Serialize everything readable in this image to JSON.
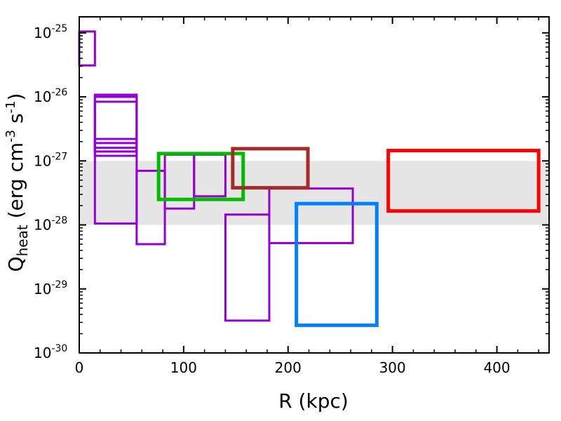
{
  "chart_data": {
    "type": "rectangles",
    "title": "",
    "xlabel": "R (kpc)",
    "ylabel": {
      "base": "Q",
      "subscript": "heat",
      "units_open": " (erg cm",
      "units_exp1": "-3",
      "units_mid": " s",
      "units_exp2": "-1",
      "units_close": ")"
    },
    "xlim": [
      0,
      450
    ],
    "ylim_log10": [
      -30,
      -24.75
    ],
    "yscale": "log",
    "x_ticks": [
      0,
      100,
      200,
      300,
      400
    ],
    "x_tick_labels": [
      "0",
      "100",
      "200",
      "300",
      "400"
    ],
    "y_ticks_log10": [
      -25,
      -26,
      -27,
      -28,
      -29,
      -30
    ],
    "y_tick_labels": [
      {
        "base": "10",
        "exp": "-25"
      },
      {
        "base": "10",
        "exp": "-26"
      },
      {
        "base": "10",
        "exp": "-27"
      },
      {
        "base": "10",
        "exp": "-28"
      },
      {
        "base": "10",
        "exp": "-29"
      },
      {
        "base": "10",
        "exp": "-30"
      }
    ],
    "shaded_band": {
      "ymin": 1e-28,
      "ymax": 1e-27,
      "color": "#e5e5e5"
    },
    "colors": {
      "purple": "#9400d3",
      "green": "#00bb00",
      "brown": "#a52a2a",
      "blue": "#0080ff",
      "red": "#ff0000"
    },
    "boxes": [
      {
        "x0": 0,
        "x1": 15,
        "y0": 3.1e-26,
        "y1": 1.05e-25,
        "color": "purple",
        "weight": "thin"
      },
      {
        "x0": 15,
        "x1": 55,
        "y0": 1.05e-28,
        "y1": 1.08e-26,
        "color": "purple",
        "weight": "thin"
      },
      {
        "x0": 15,
        "x1": 55,
        "y0": 1.4e-27,
        "y1": 1e-26,
        "color": "purple",
        "weight": "thin"
      },
      {
        "x0": 15,
        "x1": 55,
        "y0": 1.2e-27,
        "y1": 8.4e-27,
        "color": "purple",
        "weight": "thin"
      },
      {
        "x0": 15,
        "x1": 55,
        "y0": 1.6e-27,
        "y1": 2.2e-27,
        "color": "purple",
        "weight": "thin"
      },
      {
        "x0": 15,
        "x1": 55,
        "y0": 1.4e-27,
        "y1": 1.9e-27,
        "color": "purple",
        "weight": "thin"
      },
      {
        "x0": 55,
        "x1": 82,
        "y0": 5e-29,
        "y1": 7e-28,
        "color": "purple",
        "weight": "thin"
      },
      {
        "x0": 82,
        "x1": 110,
        "y0": 1.8e-28,
        "y1": 1.25e-27,
        "color": "purple",
        "weight": "thin"
      },
      {
        "x0": 110,
        "x1": 140,
        "y0": 2.8e-28,
        "y1": 1.25e-27,
        "color": "purple",
        "weight": "thin"
      },
      {
        "x0": 140,
        "x1": 182,
        "y0": 3.2e-30,
        "y1": 1.45e-28,
        "color": "purple",
        "weight": "thin"
      },
      {
        "x0": 182,
        "x1": 262,
        "y0": 5.2e-29,
        "y1": 3.7e-28,
        "color": "purple",
        "weight": "thin"
      },
      {
        "x0": 76,
        "x1": 157,
        "y0": 2.5e-28,
        "y1": 1.3e-27,
        "color": "green",
        "weight": "thick"
      },
      {
        "x0": 147,
        "x1": 219,
        "y0": 3.8e-28,
        "y1": 1.55e-27,
        "color": "brown",
        "weight": "thick"
      },
      {
        "x0": 208,
        "x1": 285,
        "y0": 2.7e-30,
        "y1": 2.15e-28,
        "color": "blue",
        "weight": "thick"
      },
      {
        "x0": 296,
        "x1": 440,
        "y0": 1.65e-28,
        "y1": 1.45e-27,
        "color": "red",
        "weight": "thick"
      }
    ]
  }
}
